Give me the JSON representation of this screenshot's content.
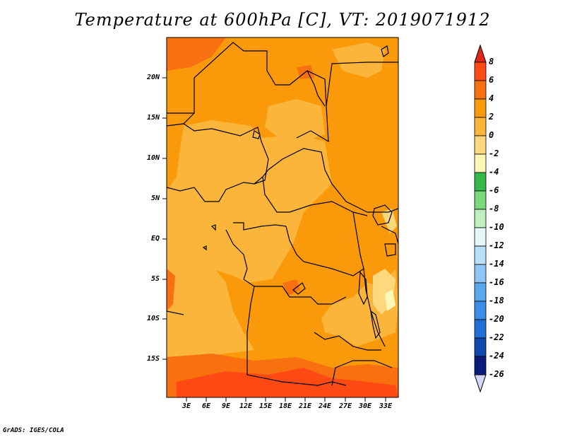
{
  "title": "Temperature at 600hPa [C], VT: 2019071912",
  "credit": "GrADS: IGES/COLA",
  "lat_labels": [
    "20N",
    "15N",
    "10N",
    "5N",
    "EQ",
    "5S",
    "10S",
    "15S"
  ],
  "lon_labels": [
    "3E",
    "6E",
    "9E",
    "12E",
    "15E",
    "18E",
    "21E",
    "24E",
    "27E",
    "30E",
    "33E"
  ],
  "colorbar": {
    "labels": [
      "8",
      "6",
      "4",
      "2",
      "0",
      "-2",
      "-4",
      "-6",
      "-8",
      "-10",
      "-12",
      "-14",
      "-16",
      "-18",
      "-20",
      "-22",
      "-24",
      "-26"
    ],
    "colors": [
      "#e02818",
      "#ff4a14",
      "#f87010",
      "#fa9a0b",
      "#fbb53b",
      "#fdd87c",
      "#fff7b8",
      "#35b84a",
      "#7ad87a",
      "#bfeebf",
      "#e6f7f7",
      "#b9e0fb",
      "#8ec7f5",
      "#5aa9ee",
      "#3d8ee6",
      "#1f6fd8",
      "#1148b0",
      "#0a1a78",
      "#d2d7f8"
    ]
  }
}
